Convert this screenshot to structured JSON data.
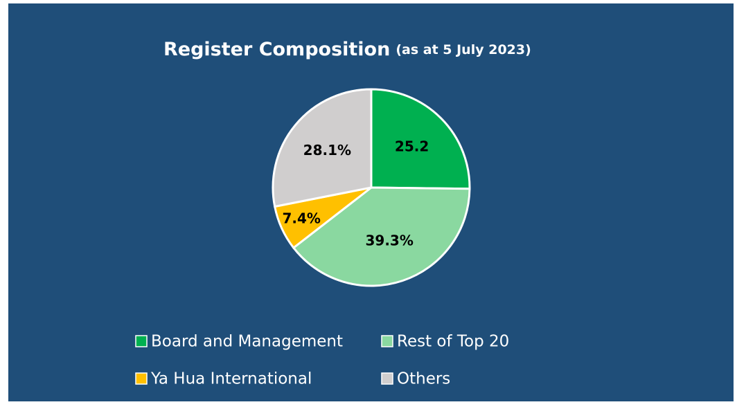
{
  "chart_data": {
    "type": "pie",
    "title": "Register Composition",
    "subtitle": "(as at 5 July 2023)",
    "categories": [
      "Board and Management",
      "Rest of Top 20",
      "Ya Hua International",
      "Others"
    ],
    "values": [
      25.2,
      39.3,
      7.4,
      28.1
    ],
    "value_labels": [
      "25.2",
      "39.3%",
      "7.4%",
      "28.1%"
    ],
    "colors": [
      "#00b050",
      "#8ad8a0",
      "#ffc000",
      "#d0cece"
    ],
    "legend": "bottom"
  }
}
